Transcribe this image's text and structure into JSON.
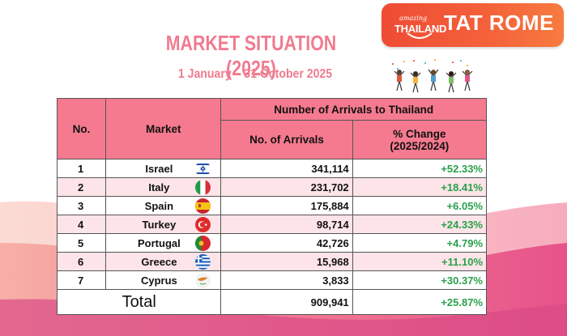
{
  "logo": {
    "small_text": "amazing",
    "brand_text": "THAILAND",
    "office_text": "TAT ROME"
  },
  "heading": {
    "title": "MARKET SITUATION (2025)",
    "period": "1 January – 31 October 2025"
  },
  "table": {
    "headers": {
      "no": "No.",
      "market": "Market",
      "group": "Number of Arrivals to Thailand",
      "arrivals": "No. of Arrivals",
      "change": "% Change (2025/2024)"
    },
    "rows": [
      {
        "no": "1",
        "market": "Israel",
        "arrivals": "341,114",
        "change": "+52.33%",
        "flag": "israel-flag-icon"
      },
      {
        "no": "2",
        "market": "Italy",
        "arrivals": "231,702",
        "change": "+18.41%",
        "flag": "italy-flag-icon"
      },
      {
        "no": "3",
        "market": "Spain",
        "arrivals": "175,884",
        "change": "+6.05%",
        "flag": "spain-flag-icon"
      },
      {
        "no": "4",
        "market": "Turkey",
        "arrivals": "98,714",
        "change": "+24.33%",
        "flag": "turkey-flag-icon"
      },
      {
        "no": "5",
        "market": "Portugal",
        "arrivals": "42,726",
        "change": "+4.79%",
        "flag": "portugal-flag-icon"
      },
      {
        "no": "6",
        "market": "Greece",
        "arrivals": "15,968",
        "change": "+11.10%",
        "flag": "greece-flag-icon"
      },
      {
        "no": "7",
        "market": "Cyprus",
        "arrivals": "3,833",
        "change": "+30.37%",
        "flag": "cyprus-flag-icon"
      }
    ],
    "total": {
      "label": "Total",
      "arrivals": "909,941",
      "change": "+25.87%"
    }
  },
  "colors": {
    "header_bg": "#f57a8f",
    "title": "#f07b8f",
    "positive_change": "#2aa04a",
    "logo_badge": "#f05a37"
  }
}
